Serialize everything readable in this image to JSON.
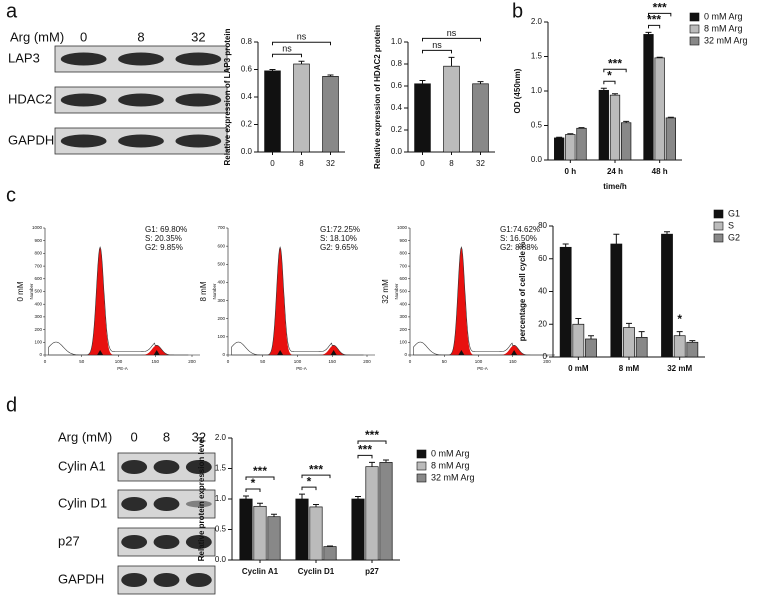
{
  "panel_labels": [
    "a",
    "b",
    "c",
    "d"
  ],
  "blots_a": {
    "header": "Arg (mM)",
    "lanes": [
      "0",
      "8",
      "32"
    ],
    "rows": [
      "LAP3",
      "HDAC2",
      "GAPDH"
    ]
  },
  "blots_d": {
    "header": "Arg (mM)",
    "lanes": [
      "0",
      "8",
      "32"
    ],
    "rows": [
      "Cylin A1",
      "Cylin D1",
      "p27",
      "GAPDH"
    ]
  },
  "chart_data": [
    {
      "type": "bar",
      "ylabel": "Relative expression of LAP3 protein",
      "categories": [
        "0",
        "8",
        "32"
      ],
      "values": [
        0.59,
        0.64,
        0.55
      ],
      "errors": [
        0.01,
        0.02,
        0.01
      ],
      "colors": [
        "#111111",
        "#bbbbbb",
        "#888888"
      ],
      "ylim": [
        0,
        0.8
      ],
      "yticks": [
        {
          "value": 0,
          "label": "0.0"
        },
        0.2,
        0.4,
        0.6,
        0.8
      ],
      "annotations": [
        "ns",
        "ns"
      ]
    },
    {
      "type": "bar",
      "ylabel": "Relative expression of HDAC2 protein",
      "categories": [
        "0",
        "8",
        "32"
      ],
      "values": [
        0.62,
        0.78,
        0.62
      ],
      "errors": [
        0.03,
        0.08,
        0.02
      ],
      "colors": [
        "#111111",
        "#bbbbbb",
        "#888888"
      ],
      "ylim": [
        0,
        1.0
      ],
      "yticks": [
        {
          "value": 0,
          "label": "0.0"
        },
        0.2,
        0.4,
        0.6,
        0.8,
        {
          "value": 1,
          "label": "1.0"
        }
      ],
      "annotations": [
        "ns",
        "ns"
      ]
    },
    {
      "type": "bar",
      "xlabel": "time/h",
      "ylabel": "OD (450nm)",
      "categories": [
        "0 h",
        "24 h",
        "48 h"
      ],
      "series": [
        {
          "name": "0 mM Arg",
          "color": "#111111",
          "values": [
            0.32,
            1.01,
            1.82
          ],
          "errors": [
            0.01,
            0.03,
            0.03
          ]
        },
        {
          "name": "8 mM Arg",
          "color": "#bbbbbb",
          "values": [
            0.37,
            0.94,
            1.48
          ],
          "errors": [
            0.01,
            0.02,
            0.01
          ]
        },
        {
          "name": "32 mM Arg",
          "color": "#888888",
          "values": [
            0.46,
            0.54,
            0.61
          ],
          "errors": [
            0.01,
            0.02,
            0.01
          ]
        }
      ],
      "ylim": [
        0,
        2.0
      ],
      "yticks": [
        {
          "value": 0,
          "label": "0.0"
        },
        0.5,
        {
          "value": 1,
          "label": "1.0"
        },
        1.5,
        {
          "value": 2,
          "label": "2.0"
        }
      ],
      "annotations": [
        "*",
        "***",
        "***",
        "***"
      ],
      "legend": "right"
    },
    {
      "type": "flow",
      "label": "0 mM",
      "stats": [
        "G1: 69.80%",
        "S: 20.35%",
        "G2:  9.85%"
      ],
      "xlabel": "PE-A",
      "ylabel": "Number",
      "xlim": [
        0,
        200
      ],
      "xticks": [
        0,
        50,
        100,
        150,
        200
      ],
      "ylim": [
        0,
        1000
      ],
      "yticks": [
        0,
        100,
        200,
        300,
        400,
        500,
        600,
        700,
        800,
        900,
        1000
      ]
    },
    {
      "type": "flow",
      "label": "8 mM",
      "stats": [
        "G1:72.25%",
        "S: 18.10%",
        "G2:  9.65%"
      ],
      "xlabel": "PE-A",
      "ylabel": "Number",
      "xlim": [
        0,
        200
      ],
      "xticks": [
        0,
        50,
        100,
        150,
        200
      ],
      "ylim": [
        0,
        700
      ],
      "yticks": [
        0,
        100,
        200,
        300,
        400,
        500,
        600,
        700
      ]
    },
    {
      "type": "flow",
      "label": "32 mM",
      "stats": [
        "G1:74.62%",
        "S:  16.50%",
        "G2:  8.88%"
      ],
      "xlabel": "PE-A",
      "ylabel": "Number",
      "xlim": [
        0,
        200
      ],
      "xticks": [
        0,
        50,
        100,
        150,
        200
      ],
      "ylim": [
        0,
        1000
      ],
      "yticks": [
        0,
        100,
        200,
        300,
        400,
        500,
        600,
        700,
        800,
        900,
        1000
      ]
    },
    {
      "type": "bar",
      "ylabel": "percentage of cell cycle %",
      "categories": [
        "0 mM",
        "8 mM",
        "32 mM"
      ],
      "series": [
        {
          "name": "G1",
          "color": "#111111",
          "values": [
            67,
            69,
            75
          ],
          "errors": [
            2,
            6,
            1.5
          ]
        },
        {
          "name": "S",
          "color": "#bbbbbb",
          "values": [
            20,
            18,
            13
          ],
          "errors": [
            3.5,
            2.5,
            2.5
          ]
        },
        {
          "name": "G2",
          "color": "#888888",
          "values": [
            11,
            12,
            9
          ],
          "errors": [
            2,
            3.5,
            1
          ]
        }
      ],
      "ylim": [
        0,
        80
      ],
      "yticks": [
        0,
        20,
        40,
        60,
        80
      ],
      "annotations": [
        "*"
      ],
      "legend": "right"
    },
    {
      "type": "bar",
      "ylabel": "Relative protein expression level",
      "categories": [
        "Cyclin A1",
        "Cyclin D1",
        "p27"
      ],
      "series": [
        {
          "name": "0 mM Arg",
          "color": "#111111",
          "values": [
            1.0,
            1.0,
            1.0
          ],
          "errors": [
            0.05,
            0.08,
            0.04
          ]
        },
        {
          "name": "8 mM Arg",
          "color": "#bbbbbb",
          "values": [
            0.88,
            0.87,
            1.53
          ],
          "errors": [
            0.05,
            0.04,
            0.07
          ]
        },
        {
          "name": "32 mM Arg",
          "color": "#888888",
          "values": [
            0.71,
            0.22,
            1.6
          ],
          "errors": [
            0.04,
            0.01,
            0.04
          ]
        }
      ],
      "ylim": [
        0,
        2.0
      ],
      "yticks": [
        {
          "value": 0,
          "label": "0.0"
        },
        0.5,
        {
          "value": 1,
          "label": "1.0"
        },
        1.5,
        {
          "value": 2,
          "label": "2.0"
        }
      ],
      "annotations": [
        "*",
        "***",
        "*",
        "***",
        "***",
        "***"
      ],
      "legend": "right"
    }
  ]
}
